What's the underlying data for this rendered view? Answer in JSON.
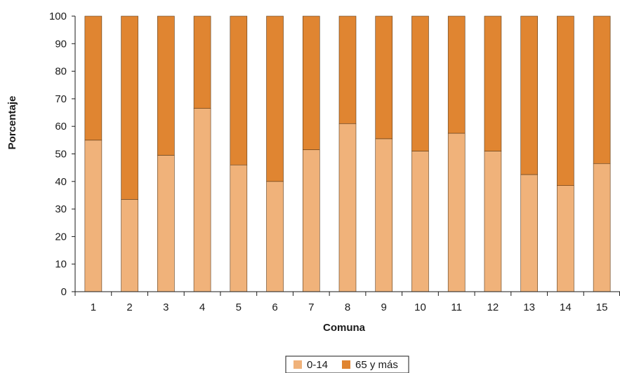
{
  "chart_data": {
    "type": "bar",
    "stacked": true,
    "xlabel": "Comuna",
    "ylabel": "Porcentaje",
    "ylim": [
      0,
      100
    ],
    "yticks": [
      "0",
      "10",
      "20",
      "30",
      "40",
      "50",
      "60",
      "70",
      "80",
      "90",
      "100"
    ],
    "categories": [
      "1",
      "2",
      "3",
      "4",
      "5",
      "6",
      "7",
      "8",
      "9",
      "10",
      "11",
      "12",
      "13",
      "14",
      "15"
    ],
    "series": [
      {
        "name": "0-14",
        "color": "#f0b27a",
        "values": [
          55,
          33.5,
          49.5,
          66.5,
          46,
          40,
          51.5,
          61,
          55.5,
          51,
          57.5,
          51,
          42.5,
          38.5,
          46.5
        ]
      },
      {
        "name": "65 y más",
        "color": "#e08531",
        "values": [
          45,
          66.5,
          50.5,
          33.5,
          54,
          60,
          48.5,
          39,
          44.5,
          49,
          42.5,
          49,
          57.5,
          61.5,
          53.5
        ]
      }
    ],
    "grid": false,
    "legend": "bottom-center"
  }
}
